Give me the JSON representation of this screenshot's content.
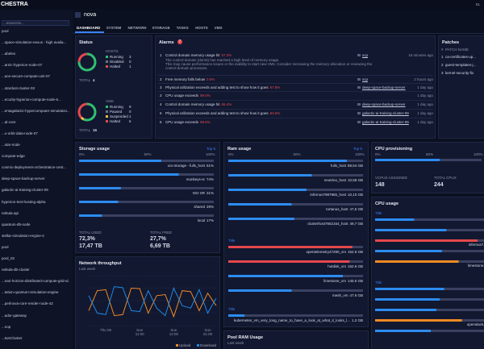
{
  "topbar": {
    "logo": "CHESTRA",
    "user": "EL"
  },
  "sidebar": {
    "search": "...esources...",
    "items": [
      "pool",
      "...space-simulation-nexus - high availa...",
      "...abeles",
      "...arnic-hyperion-node-07",
      "...ace-secure-compute-unit-07",
      "...stardust-cluster-03",
      "...ecurity-hyperion-compute-node-5...",
      "...entagalactic-hypercomputer-simulation...",
      "...al-core",
      "...o-orbit-data-node-07",
      "...star-node",
      "compute-edge",
      "cosmic-deployment-orchestration-cent...",
      "deep-space-backup-server",
      "galactic-ai-training-cluster-09",
      "hyperion-test-hosting-alpha",
      "nebula-api",
      "quantum-db-node",
      "stellar-simulation-engine-2",
      "pool",
      "pool_02",
      "nebula-db-cluster",
      "...nari-horizon-distributed-compute-grid-ul...",
      "...tation-quantum-simulation-engine",
      "...perlnova-core-render-node-42",
      "...ador-gateway",
      "...nop",
      "...tumCluster"
    ]
  },
  "header": {
    "title": "nova",
    "tabs": [
      "DASHBOARD",
      "SYSTEM",
      "NETWORK",
      "STORAGE",
      "TASKS",
      "HOSTS",
      "VMS"
    ]
  },
  "status": {
    "title": "Status",
    "groups": [
      {
        "label": "HOSTS",
        "rows": [
          {
            "label": "Running",
            "value": 3,
            "color": "#2fbf71"
          },
          {
            "label": "Disabled",
            "value": 0,
            "color": "#6b7280"
          },
          {
            "label": "Halted",
            "value": 1,
            "color": "#e5484d"
          }
        ],
        "total_label": "TOTAL",
        "total": 4
      },
      {
        "label": "VMS",
        "rows": [
          {
            "label": "Running",
            "value": 9,
            "color": "#2fbf71"
          },
          {
            "label": "Paused",
            "value": 0,
            "color": "#6b7280"
          },
          {
            "label": "Suspended",
            "value": 1,
            "color": "#f5b942"
          },
          {
            "label": "Halted",
            "value": 6,
            "color": "#e5484d"
          }
        ],
        "total_label": "TOTAL",
        "total": 16
      }
    ]
  },
  "alarms": {
    "title": "Alarms",
    "count": 7,
    "rows": [
      {
        "n": 1,
        "text": "Control domain memory usage hit",
        "value": "57.3%",
        "target": "xcp",
        "time": "18 minutes ago",
        "details": [
          "The control domain (dom0) has reached a high level of memory usage.",
          "This may cause performance issues or the inability to start new VMs. Consider increasing the memory allocation or reviewing the",
          "control domain processes."
        ]
      },
      {
        "n": 2,
        "text": "Free memory falls below",
        "value": "0.0%",
        "target": "xcp",
        "time": "2 hours ago",
        "details": []
      },
      {
        "n": 3,
        "text": "Physical utilization exceeds and adding test to show how it goes",
        "value": "67.8%",
        "target": "deep-space-backup-server",
        "time": "1 day ago",
        "details": []
      },
      {
        "n": 3,
        "text": "CPU usage exceeds",
        "value": "99.0%",
        "target": "",
        "time": "1 day ago",
        "details": []
      },
      {
        "n": 4,
        "text": "Control domain memory usage hit",
        "value": "66.4%",
        "target": "deep-space-backup-server",
        "time": "1 day ago",
        "details": []
      },
      {
        "n": 5,
        "text": "Physical utilization exceeds and adding test to show how it goes",
        "value": "83.6%",
        "target": "galactic-ai-training-cluster-09",
        "time": "1 day ago",
        "details": []
      },
      {
        "n": 6,
        "text": "CPU usage exceeds",
        "value": "98.8%",
        "target": "galactic-ai-training-cluster-09",
        "time": "1 day ago",
        "details": []
      }
    ]
  },
  "patches": {
    "title": "Patches",
    "head": [
      "#",
      "PATCH NAME"
    ],
    "rows": [
      {
        "n": 1,
        "name": "ca-certificates-up..."
      },
      {
        "n": 2,
        "name": "guest-templates-j..."
      },
      {
        "n": 3,
        "name": "kernel-security-fix"
      }
    ]
  },
  "storage": {
    "title": "Storage usage",
    "link": "Top 5",
    "axis": [
      "0%",
      "50%",
      "100%"
    ],
    "items": [
      {
        "label": "xcs-storage - fulls_host",
        "value": 61,
        "value_label": "61%"
      },
      {
        "label": "monkeys-sr",
        "value": 74,
        "value_label": "74%"
      },
      {
        "label": "ISO SR",
        "value": 31,
        "value_label": "31%"
      },
      {
        "label": "shared",
        "value": 29,
        "value_label": "29%"
      },
      {
        "label": "local",
        "value": 17,
        "value_label": "17%"
      }
    ],
    "totals": [
      {
        "label": "TOTAL USED",
        "pct": "72,3%",
        "size": "17,47 TB"
      },
      {
        "label": "TOTAL FREE",
        "pct": "27,7%",
        "size": "6,69 TB"
      }
    ]
  },
  "chart_data": {
    "type": "line",
    "title": "Network throughput",
    "subtitle": "Last week",
    "categories": [
      null,
      null,
      "Thu 06",
      null,
      null,
      null,
      "Sun 11:00",
      null,
      null,
      null,
      "Sun 12:00",
      null,
      null,
      null,
      "Sun 01:00",
      null
    ],
    "ylim": [
      0,
      100
    ],
    "yticks": [
      0,
      25,
      50,
      75,
      100
    ],
    "grid": true,
    "legend": "bottom-right",
    "series": [
      {
        "name": "Upload",
        "color": "#f08a24",
        "values": [
          30,
          70,
          72,
          20,
          22,
          75,
          74,
          25,
          60,
          62,
          18,
          70,
          68,
          30,
          65,
          40
        ]
      },
      {
        "name": "Download",
        "color": "#1e88e5",
        "values": [
          60,
          25,
          22,
          78,
          76,
          30,
          28,
          70,
          35,
          20,
          75,
          40,
          35,
          72,
          25,
          55
        ]
      }
    ]
  },
  "ram": {
    "title": "Ram usage",
    "link": "Top 5",
    "axis": [
      "0%",
      "50%",
      "100%"
    ],
    "items": [
      {
        "label": "fulls_host",
        "value": 88,
        "value_label": "88,54 GB"
      },
      {
        "label": "neutrino_host",
        "value": 62,
        "value_label": "10,58 GB"
      },
      {
        "label": "infernus7987965_host",
        "value": 58,
        "value_label": "10,10 GB"
      },
      {
        "label": "tortanus_host",
        "value": 47,
        "value_label": "47,6 GB"
      },
      {
        "label": "clusterhost7652164_host",
        "value": 49,
        "value_label": "49,7 GB"
      }
    ],
    "sections": [
      {
        "title": "Title",
        "items": [
          {
            "label": "opentelemetry47290_vm",
            "value": 92,
            "value_label": "152.6 GB"
          },
          {
            "label": "hotdisk_vm",
            "value": 90,
            "value_label": "152.6 GB"
          },
          {
            "label": "limestone_vm",
            "value": 85,
            "value_label": "145.5 GB"
          },
          {
            "label": "mesh_vm",
            "value": 47,
            "value_label": "47.6 GB"
          }
        ]
      },
      {
        "title": "Title",
        "items": [
          {
            "label": "kubernetes_vm_very_long_name_to_have_a_look_at_what_it_looks_l...",
            "value": 12,
            "value_label": "1.2 GB"
          }
        ]
      }
    ]
  },
  "pool_ram": {
    "title": "Pool RAM Usage",
    "subtitle": "Last week"
  },
  "cpu_prov": {
    "title": "CPU provisioning",
    "axis": [
      "0%",
      "50%",
      "100%"
    ],
    "assigned_label": "VCPUS ASSIGNED",
    "assigned": 148,
    "total_label": "TOTAL CPUS",
    "total": 244
  },
  "cpu_usage": {
    "title": "CPU usage",
    "sections": [
      {
        "title": "Title",
        "items": [
          {
            "label": "",
            "value": 35
          },
          {
            "label": "",
            "value": 64
          },
          {
            "label": "infernus7...",
            "value": 92
          },
          {
            "label": "",
            "value": 60
          },
          {
            "label": "limestone...",
            "value": 75
          }
        ]
      },
      {
        "title": "Title",
        "items": [
          {
            "label": "",
            "value": 62
          },
          {
            "label": "",
            "value": 58
          },
          {
            "label": "",
            "value": 55
          },
          {
            "label": "openstack...",
            "value": 78
          },
          {
            "label": "",
            "value": 50
          }
        ]
      }
    ]
  }
}
